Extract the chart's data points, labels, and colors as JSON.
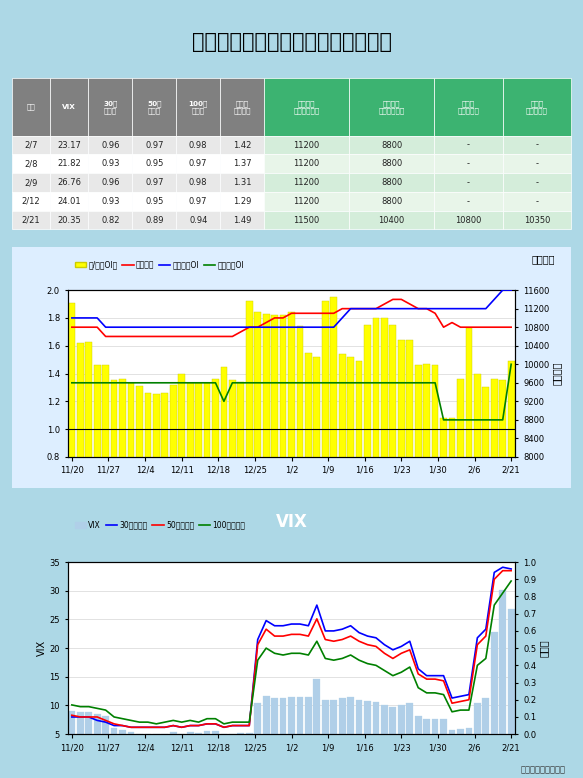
{
  "title": "選擇權波動率指數與賣買權未平倉比",
  "bg_color": "#add8e6",
  "table": {
    "headers": [
      "日期",
      "VIX",
      "30日\n百分位",
      "50日\n百分位",
      "100日\n百分位",
      "賣買權\n未平倉比",
      "買權最大\n未平倉履約價",
      "賣權最大\n未平倉履約價",
      "週買權\n最大履約價",
      "週賣權\n最大履約價"
    ],
    "rows": [
      [
        "2/7",
        "23.17",
        "0.96",
        "0.97",
        "0.98",
        "1.42",
        "11200",
        "8800",
        "-",
        "-"
      ],
      [
        "2/8",
        "21.82",
        "0.93",
        "0.95",
        "0.97",
        "1.37",
        "11200",
        "8800",
        "-",
        "-"
      ],
      [
        "2/9",
        "26.76",
        "0.96",
        "0.97",
        "0.98",
        "1.31",
        "11200",
        "8800",
        "-",
        "-"
      ],
      [
        "2/12",
        "24.01",
        "0.93",
        "0.95",
        "0.97",
        "1.29",
        "11200",
        "8800",
        "-",
        "-"
      ],
      [
        "2/21",
        "20.35",
        "0.82",
        "0.89",
        "0.94",
        "1.49",
        "11500",
        "10400",
        "10800",
        "10350"
      ]
    ]
  },
  "chart1": {
    "x_labels": [
      "11/20",
      "11/27",
      "12/4",
      "12/11",
      "12/18",
      "12/25",
      "1/2",
      "1/9",
      "1/16",
      "1/23",
      "1/30",
      "2/6",
      "2/21"
    ],
    "bar_values": [
      1.91,
      1.62,
      1.63,
      1.46,
      1.46,
      1.35,
      1.36,
      1.33,
      1.31,
      1.26,
      1.25,
      1.26,
      1.32,
      1.4,
      1.33,
      1.33,
      1.33,
      1.36,
      1.45,
      1.35,
      1.34,
      1.92,
      1.84,
      1.83,
      1.82,
      1.82,
      1.84,
      1.74,
      1.55,
      1.52,
      1.92,
      1.95,
      1.54,
      1.52,
      1.49,
      1.75,
      1.8,
      1.8,
      1.75,
      1.64,
      1.64,
      1.46,
      1.47,
      1.46,
      1.08,
      1.08,
      1.36,
      1.73,
      1.4,
      1.3,
      1.36,
      1.35,
      1.49
    ],
    "red_line": [
      10800,
      10800,
      10800,
      10800,
      10600,
      10600,
      10600,
      10600,
      10600,
      10600,
      10600,
      10600,
      10600,
      10600,
      10600,
      10600,
      10600,
      10600,
      10600,
      10600,
      10700,
      10800,
      10800,
      10900,
      11000,
      11000,
      11100,
      11100,
      11100,
      11100,
      11100,
      11100,
      11200,
      11200,
      11200,
      11200,
      11200,
      11300,
      11400,
      11400,
      11300,
      11200,
      11200,
      11100,
      10800,
      10900,
      10800,
      10800,
      10800,
      10800,
      10800,
      10800,
      10800
    ],
    "blue_line": [
      11000,
      11000,
      11000,
      11000,
      10800,
      10800,
      10800,
      10800,
      10800,
      10800,
      10800,
      10800,
      10800,
      10800,
      10800,
      10800,
      10800,
      10800,
      10800,
      10800,
      10800,
      10800,
      10800,
      10800,
      10800,
      10800,
      10800,
      10800,
      10800,
      10800,
      10800,
      10800,
      11000,
      11200,
      11200,
      11200,
      11200,
      11200,
      11200,
      11200,
      11200,
      11200,
      11200,
      11200,
      11200,
      11200,
      11200,
      11200,
      11200,
      11200,
      11400,
      11600,
      11600
    ],
    "green_line": [
      9600,
      9600,
      9600,
      9600,
      9600,
      9600,
      9600,
      9600,
      9600,
      9600,
      9600,
      9600,
      9600,
      9600,
      9600,
      9600,
      9600,
      9600,
      9200,
      9600,
      9600,
      9600,
      9600,
      9600,
      9600,
      9600,
      9600,
      9600,
      9600,
      9600,
      9600,
      9600,
      9600,
      9600,
      9600,
      9600,
      9600,
      9600,
      9600,
      9600,
      9600,
      9600,
      9600,
      9600,
      8800,
      8800,
      8800,
      8800,
      8800,
      8800,
      8800,
      8800,
      10000
    ],
    "ylim_left": [
      0.8,
      2.0
    ],
    "ylim_right": [
      8000,
      11600
    ],
    "yticks_left": [
      0.8,
      1.0,
      1.2,
      1.4,
      1.6,
      1.8,
      2.0
    ],
    "yticks_right": [
      8000,
      8400,
      8800,
      9200,
      9600,
      10000,
      10400,
      10800,
      11200,
      11600
    ]
  },
  "chart2": {
    "x_labels": [
      "11/20",
      "11/27",
      "12/4",
      "12/11",
      "12/18",
      "12/25",
      "1/2",
      "1/9",
      "1/16",
      "1/23",
      "1/30",
      "2/6",
      "2/21"
    ],
    "vix_bars": [
      9.04,
      8.84,
      8.83,
      8.53,
      8.17,
      6.07,
      5.76,
      5.45,
      5.1,
      5.11,
      5.0,
      5.1,
      5.36,
      5.11,
      5.36,
      5.26,
      5.51,
      5.6,
      5.0,
      5.08,
      5.28,
      5.18,
      10.37,
      11.71,
      11.35,
      11.32,
      11.47,
      11.51,
      11.43,
      14.64,
      11.0,
      11.02,
      11.25,
      11.42,
      11.04,
      10.76,
      10.63,
      10.17,
      9.71,
      10.04,
      10.45,
      8.2,
      7.67,
      7.66,
      7.67,
      5.66,
      5.91,
      6.11,
      10.48,
      11.22,
      22.81,
      30.14,
      26.77
    ],
    "p30": [
      0.1,
      0.1,
      0.1,
      0.08,
      0.07,
      0.05,
      0.05,
      0.04,
      0.04,
      0.04,
      0.04,
      0.04,
      0.05,
      0.04,
      0.05,
      0.05,
      0.06,
      0.06,
      0.04,
      0.05,
      0.05,
      0.05,
      0.55,
      0.66,
      0.63,
      0.63,
      0.64,
      0.64,
      0.63,
      0.75,
      0.6,
      0.6,
      0.61,
      0.63,
      0.59,
      0.57,
      0.56,
      0.52,
      0.49,
      0.51,
      0.54,
      0.38,
      0.34,
      0.34,
      0.34,
      0.21,
      0.22,
      0.23,
      0.56,
      0.61,
      0.94,
      0.97,
      0.96
    ],
    "p50": [
      0.11,
      0.1,
      0.1,
      0.1,
      0.08,
      0.06,
      0.05,
      0.04,
      0.04,
      0.04,
      0.04,
      0.04,
      0.05,
      0.04,
      0.05,
      0.05,
      0.06,
      0.06,
      0.04,
      0.05,
      0.05,
      0.05,
      0.52,
      0.61,
      0.57,
      0.57,
      0.58,
      0.58,
      0.57,
      0.67,
      0.55,
      0.54,
      0.55,
      0.57,
      0.54,
      0.52,
      0.51,
      0.47,
      0.44,
      0.47,
      0.49,
      0.35,
      0.32,
      0.32,
      0.31,
      0.18,
      0.19,
      0.2,
      0.52,
      0.57,
      0.9,
      0.95,
      0.95
    ],
    "p100": [
      0.17,
      0.16,
      0.16,
      0.15,
      0.14,
      0.1,
      0.09,
      0.08,
      0.07,
      0.07,
      0.06,
      0.07,
      0.08,
      0.07,
      0.08,
      0.07,
      0.09,
      0.09,
      0.06,
      0.07,
      0.07,
      0.07,
      0.43,
      0.5,
      0.47,
      0.46,
      0.47,
      0.47,
      0.46,
      0.54,
      0.44,
      0.43,
      0.44,
      0.46,
      0.43,
      0.41,
      0.4,
      0.37,
      0.34,
      0.36,
      0.39,
      0.27,
      0.24,
      0.24,
      0.23,
      0.13,
      0.14,
      0.14,
      0.4,
      0.44,
      0.75,
      0.82,
      0.89
    ],
    "ylim_left": [
      5.0,
      35.0
    ],
    "ylim_right": [
      0.0,
      1.0
    ],
    "yticks_left": [
      5.0,
      10.0,
      15.0,
      20.0,
      25.0,
      30.0,
      35.0
    ],
    "yticks_right": [
      0,
      0.1,
      0.2,
      0.3,
      0.4,
      0.5,
      0.6,
      0.7,
      0.8,
      0.9,
      1.0
    ]
  },
  "footer": "統一期貨研究科製作"
}
